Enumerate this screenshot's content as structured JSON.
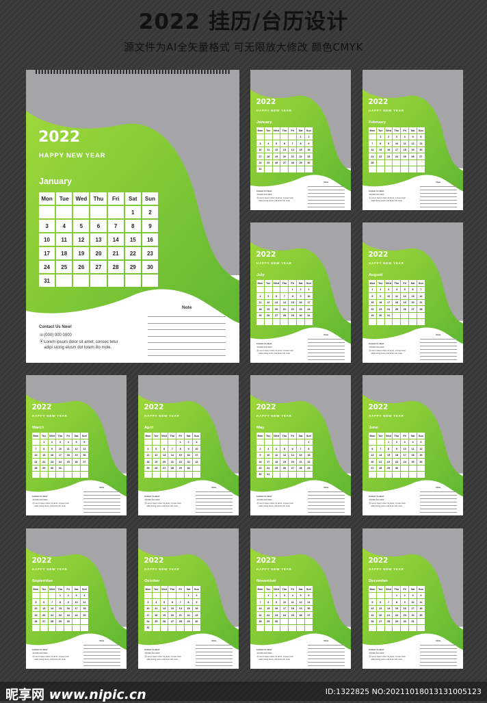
{
  "header": {
    "title": "2022 挂历/台历设计",
    "subtitle": "源文件为AI全矢量格式   可无限放大修改   颜色CMYK"
  },
  "calendar": {
    "year": "2022",
    "greeting": "HAPPY NEW YEAR",
    "weekdays": [
      "Mon",
      "Tue",
      "Wed",
      "Thu",
      "Fri",
      "Sat",
      "Sun"
    ],
    "note_label": "Note",
    "contact_title": "Contact Us Now!",
    "phone": "(000) 000 0000",
    "address_line1": "Lorem ipsum dolor sit amet, consec tetur",
    "address_line2": "adipi sicing eiusm dol lorem illo mole."
  },
  "months": [
    {
      "name": "January",
      "offset": 5,
      "days": 31
    },
    {
      "name": "February",
      "offset": 1,
      "days": 28
    },
    {
      "name": "March",
      "offset": 1,
      "days": 31
    },
    {
      "name": "April",
      "offset": 4,
      "days": 30
    },
    {
      "name": "May",
      "offset": 6,
      "days": 31
    },
    {
      "name": "June",
      "offset": 2,
      "days": 30
    },
    {
      "name": "July",
      "offset": 4,
      "days": 31
    },
    {
      "name": "August",
      "offset": 0,
      "days": 31
    },
    {
      "name": "September",
      "offset": 3,
      "days": 30
    },
    {
      "name": "October",
      "offset": 5,
      "days": 31
    },
    {
      "name": "November",
      "offset": 1,
      "days": 30
    },
    {
      "name": "December",
      "offset": 3,
      "days": 31
    }
  ],
  "colors": {
    "green_light": "#9ed83a",
    "green_dark": "#5cb531",
    "gray": "#a5a5a7",
    "white": "#ffffff"
  },
  "footer": {
    "logo_cn": "昵享网",
    "logo_url": "www.nipic.cn",
    "image_id": "ID:1322825 NO:20211018013131005123"
  }
}
